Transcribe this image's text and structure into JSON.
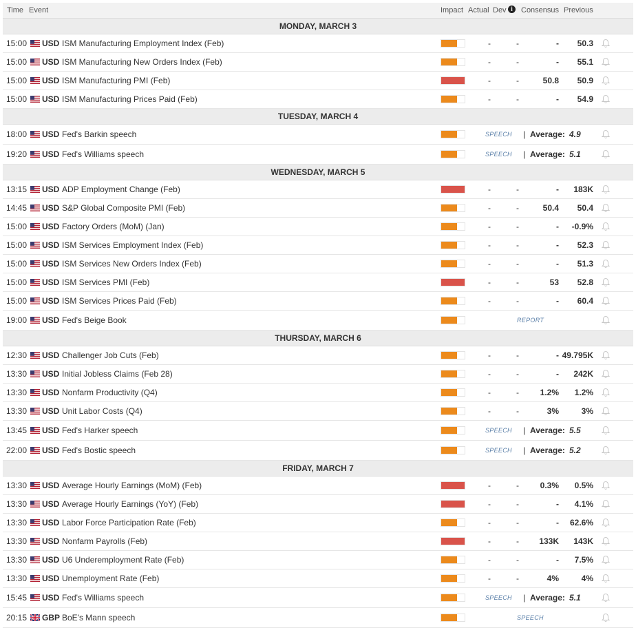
{
  "header": {
    "time": "Time",
    "event": "Event",
    "impact": "Impact",
    "actual": "Actual",
    "dev": "Dev",
    "info_icon": "i",
    "consensus": "Consensus",
    "previous": "Previous"
  },
  "colors": {
    "high": "#d9534a",
    "medium": "#ec8a1c"
  },
  "days": [
    {
      "label": "MONDAY, MARCH 3",
      "events": [
        {
          "time": "15:00",
          "currency": "USD",
          "flag": "us",
          "name": "ISM Manufacturing Employment Index (Feb)",
          "impact": "medium",
          "impact_level": 0.67,
          "actual": "-",
          "dev": "-",
          "consensus": "-",
          "previous": "50.3"
        },
        {
          "time": "15:00",
          "currency": "USD",
          "flag": "us",
          "name": "ISM Manufacturing New Orders Index (Feb)",
          "impact": "medium",
          "impact_level": 0.67,
          "actual": "-",
          "dev": "-",
          "consensus": "-",
          "previous": "55.1"
        },
        {
          "time": "15:00",
          "currency": "USD",
          "flag": "us",
          "name": "ISM Manufacturing PMI (Feb)",
          "impact": "high",
          "impact_level": 1.0,
          "actual": "-",
          "dev": "-",
          "consensus": "50.8",
          "previous": "50.9"
        },
        {
          "time": "15:00",
          "currency": "USD",
          "flag": "us",
          "name": "ISM Manufacturing Prices Paid (Feb)",
          "impact": "medium",
          "impact_level": 0.67,
          "actual": "-",
          "dev": "-",
          "consensus": "-",
          "previous": "54.9"
        }
      ]
    },
    {
      "label": "TUESDAY, MARCH 4",
      "events": [
        {
          "time": "18:00",
          "currency": "USD",
          "flag": "us",
          "name": "Fed's Barkin speech",
          "impact": "medium",
          "impact_level": 0.67,
          "kind": "speech",
          "tag": "SPEECH",
          "avg_label": "Average:",
          "avg_value": "4.9"
        },
        {
          "time": "19:20",
          "currency": "USD",
          "flag": "us",
          "name": "Fed's Williams speech",
          "impact": "medium",
          "impact_level": 0.67,
          "kind": "speech",
          "tag": "SPEECH",
          "avg_label": "Average:",
          "avg_value": "5.1"
        }
      ]
    },
    {
      "label": "WEDNESDAY, MARCH 5",
      "events": [
        {
          "time": "13:15",
          "currency": "USD",
          "flag": "us",
          "name": "ADP Employment Change (Feb)",
          "impact": "high",
          "impact_level": 1.0,
          "actual": "-",
          "dev": "-",
          "consensus": "-",
          "previous": "183K"
        },
        {
          "time": "14:45",
          "currency": "USD",
          "flag": "us",
          "name": "S&P Global Composite PMI (Feb)",
          "impact": "medium",
          "impact_level": 0.67,
          "actual": "-",
          "dev": "-",
          "consensus": "50.4",
          "previous": "50.4"
        },
        {
          "time": "15:00",
          "currency": "USD",
          "flag": "us",
          "name": "Factory Orders (MoM) (Jan)",
          "impact": "medium",
          "impact_level": 0.67,
          "actual": "-",
          "dev": "-",
          "consensus": "-",
          "previous": "-0.9%"
        },
        {
          "time": "15:00",
          "currency": "USD",
          "flag": "us",
          "name": "ISM Services Employment Index (Feb)",
          "impact": "medium",
          "impact_level": 0.67,
          "actual": "-",
          "dev": "-",
          "consensus": "-",
          "previous": "52.3"
        },
        {
          "time": "15:00",
          "currency": "USD",
          "flag": "us",
          "name": "ISM Services New Orders Index (Feb)",
          "impact": "medium",
          "impact_level": 0.67,
          "actual": "-",
          "dev": "-",
          "consensus": "-",
          "previous": "51.3"
        },
        {
          "time": "15:00",
          "currency": "USD",
          "flag": "us",
          "name": "ISM Services PMI (Feb)",
          "impact": "high",
          "impact_level": 1.0,
          "actual": "-",
          "dev": "-",
          "consensus": "53",
          "previous": "52.8"
        },
        {
          "time": "15:00",
          "currency": "USD",
          "flag": "us",
          "name": "ISM Services Prices Paid (Feb)",
          "impact": "medium",
          "impact_level": 0.67,
          "actual": "-",
          "dev": "-",
          "consensus": "-",
          "previous": "60.4"
        },
        {
          "time": "19:00",
          "currency": "USD",
          "flag": "us",
          "name": "Fed's Beige Book",
          "impact": "medium",
          "impact_level": 0.67,
          "kind": "report",
          "tag": "REPORT"
        }
      ]
    },
    {
      "label": "THURSDAY, MARCH 6",
      "events": [
        {
          "time": "12:30",
          "currency": "USD",
          "flag": "us",
          "name": "Challenger Job Cuts (Feb)",
          "impact": "medium",
          "impact_level": 0.67,
          "actual": "-",
          "dev": "-",
          "consensus": "-",
          "previous": "49.795K"
        },
        {
          "time": "13:30",
          "currency": "USD",
          "flag": "us",
          "name": "Initial Jobless Claims (Feb 28)",
          "impact": "medium",
          "impact_level": 0.67,
          "actual": "-",
          "dev": "-",
          "consensus": "-",
          "previous": "242K"
        },
        {
          "time": "13:30",
          "currency": "USD",
          "flag": "us",
          "name": "Nonfarm Productivity (Q4)",
          "impact": "medium",
          "impact_level": 0.67,
          "actual": "-",
          "dev": "-",
          "consensus": "1.2%",
          "previous": "1.2%"
        },
        {
          "time": "13:30",
          "currency": "USD",
          "flag": "us",
          "name": "Unit Labor Costs (Q4)",
          "impact": "medium",
          "impact_level": 0.67,
          "actual": "-",
          "dev": "-",
          "consensus": "3%",
          "previous": "3%"
        },
        {
          "time": "13:45",
          "currency": "USD",
          "flag": "us",
          "name": "Fed's Harker speech",
          "impact": "medium",
          "impact_level": 0.67,
          "kind": "speech",
          "tag": "SPEECH",
          "avg_label": "Average:",
          "avg_value": "5.5"
        },
        {
          "time": "22:00",
          "currency": "USD",
          "flag": "us",
          "name": "Fed's Bostic speech",
          "impact": "medium",
          "impact_level": 0.67,
          "kind": "speech",
          "tag": "SPEECH",
          "avg_label": "Average:",
          "avg_value": "5.2"
        }
      ]
    },
    {
      "label": "FRIDAY, MARCH 7",
      "events": [
        {
          "time": "13:30",
          "currency": "USD",
          "flag": "us",
          "name": "Average Hourly Earnings (MoM) (Feb)",
          "impact": "high",
          "impact_level": 1.0,
          "actual": "-",
          "dev": "-",
          "consensus": "0.3%",
          "previous": "0.5%"
        },
        {
          "time": "13:30",
          "currency": "USD",
          "flag": "us",
          "name": "Average Hourly Earnings (YoY) (Feb)",
          "impact": "high",
          "impact_level": 1.0,
          "actual": "-",
          "dev": "-",
          "consensus": "-",
          "previous": "4.1%"
        },
        {
          "time": "13:30",
          "currency": "USD",
          "flag": "us",
          "name": "Labor Force Participation Rate (Feb)",
          "impact": "medium",
          "impact_level": 0.67,
          "actual": "-",
          "dev": "-",
          "consensus": "-",
          "previous": "62.6%"
        },
        {
          "time": "13:30",
          "currency": "USD",
          "flag": "us",
          "name": "Nonfarm Payrolls (Feb)",
          "impact": "high",
          "impact_level": 1.0,
          "actual": "-",
          "dev": "-",
          "consensus": "133K",
          "previous": "143K"
        },
        {
          "time": "13:30",
          "currency": "USD",
          "flag": "us",
          "name": "U6 Underemployment Rate (Feb)",
          "impact": "medium",
          "impact_level": 0.67,
          "actual": "-",
          "dev": "-",
          "consensus": "-",
          "previous": "7.5%"
        },
        {
          "time": "13:30",
          "currency": "USD",
          "flag": "us",
          "name": "Unemployment Rate (Feb)",
          "impact": "medium",
          "impact_level": 0.67,
          "actual": "-",
          "dev": "-",
          "consensus": "4%",
          "previous": "4%"
        },
        {
          "time": "15:45",
          "currency": "USD",
          "flag": "us",
          "name": "Fed's Williams speech",
          "impact": "medium",
          "impact_level": 0.67,
          "kind": "speech",
          "tag": "SPEECH",
          "avg_label": "Average:",
          "avg_value": "5.1"
        },
        {
          "time": "20:15",
          "currency": "GBP",
          "flag": "gb",
          "name": "BoE's Mann speech",
          "impact": "medium",
          "impact_level": 0.67,
          "kind": "speech-solo",
          "tag": "SPEECH"
        }
      ]
    }
  ]
}
